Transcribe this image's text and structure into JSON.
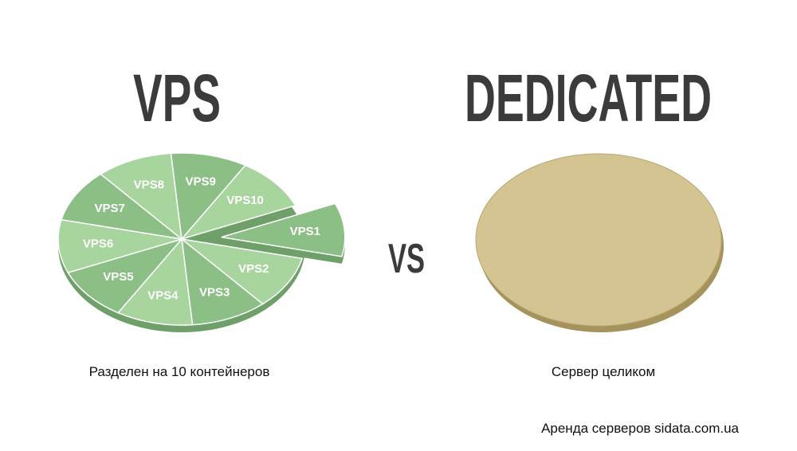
{
  "left": {
    "title": "VPS",
    "slices": [
      "VPS1",
      "VPS2",
      "VPS3",
      "VPS4",
      "VPS5",
      "VPS6",
      "VPS7",
      "VPS8",
      "VPS9",
      "VPS10"
    ],
    "caption": "Разделен на 10 контейнеров"
  },
  "middle": {
    "label": "VS"
  },
  "right": {
    "title": "DEDICATED",
    "caption": "Сервер целиком"
  },
  "footer": "Аренда серверов sidata.com.ua"
}
